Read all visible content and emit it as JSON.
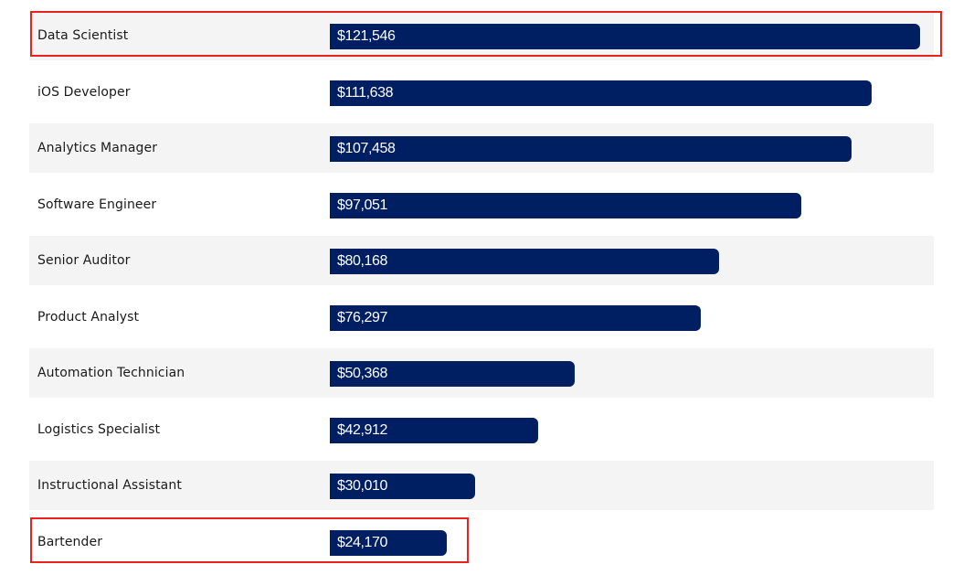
{
  "chart_data": {
    "type": "bar",
    "orientation": "horizontal",
    "categories": [
      "Data Scientist",
      "iOS Developer",
      "Analytics Manager",
      "Software Engineer",
      "Senior Auditor",
      "Product Analyst",
      "Automation Technician",
      "Logistics Specialist",
      "Instructional Assistant",
      "Bartender"
    ],
    "values": [
      121546,
      111638,
      107458,
      97051,
      80168,
      76297,
      50368,
      42912,
      30010,
      24170
    ],
    "value_labels": [
      "$121,546",
      "$111,638",
      "$107,458",
      "$97,051",
      "$80,168",
      "$76,297",
      "$50,368",
      "$42,912",
      "$30,010",
      "$24,170"
    ],
    "title": "",
    "xlabel": "",
    "ylabel": "",
    "xlim": [
      0,
      121546
    ],
    "grid": false,
    "legend": "none",
    "highlighted": [
      "Data Scientist",
      "Bartender"
    ]
  },
  "colors": {
    "bar": "#001e62",
    "row_shade": "#f4f4f4",
    "highlight": "#e8231d",
    "label_text": "#1a1a1a",
    "value_text": "#ffffff"
  }
}
